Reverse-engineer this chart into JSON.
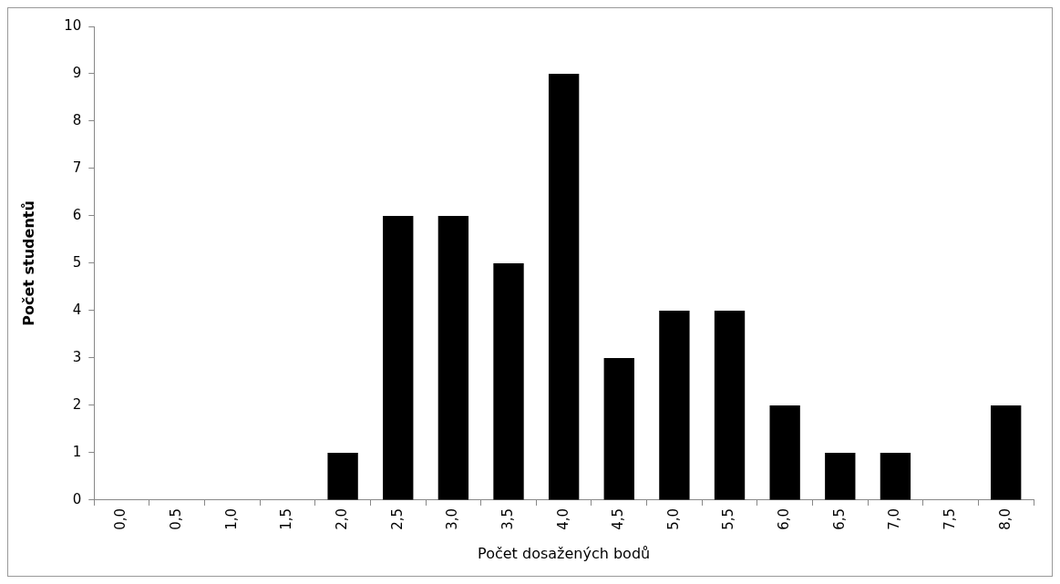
{
  "chart_data": {
    "type": "bar",
    "xlabel": "Počet dosažených bodů",
    "ylabel": "Počet studentů",
    "categories": [
      "0,0",
      "0,5",
      "1,0",
      "1,5",
      "2,0",
      "2,5",
      "3,0",
      "3,5",
      "4,0",
      "4,5",
      "5,0",
      "5,5",
      "6,0",
      "6,5",
      "7,0",
      "7,5",
      "8,0"
    ],
    "values": [
      0,
      0,
      0,
      0,
      1,
      6,
      6,
      5,
      9,
      3,
      4,
      4,
      2,
      1,
      1,
      0,
      2
    ],
    "color": "#000000",
    "ylim": [
      0,
      10
    ],
    "yticks": [
      0,
      1,
      2,
      3,
      4,
      5,
      6,
      7,
      8,
      9,
      10
    ]
  }
}
